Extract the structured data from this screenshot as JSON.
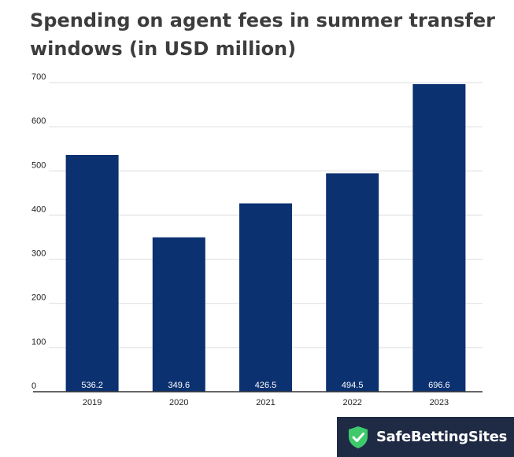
{
  "chart_data": {
    "type": "bar",
    "title": "Spending on agent fees in summer transfer windows (in USD million)",
    "categories": [
      "2019",
      "2020",
      "2021",
      "2022",
      "2023"
    ],
    "values": [
      536.2,
      349.6,
      426.5,
      494.5,
      696.6
    ],
    "data_labels": [
      "536.2",
      "349.6",
      "426.5",
      "494.5",
      "696.6"
    ],
    "xlabel": "",
    "ylabel": "",
    "ylim": [
      0,
      700
    ],
    "yticks": [
      0,
      100,
      200,
      300,
      400,
      500,
      600,
      700
    ],
    "grid": true,
    "bar_color": "#0b3170"
  },
  "brand": {
    "name": "SafeBettingSites",
    "icon": "shield-check-icon",
    "background": "#1f2a44",
    "icon_color": "#3ec96b"
  }
}
